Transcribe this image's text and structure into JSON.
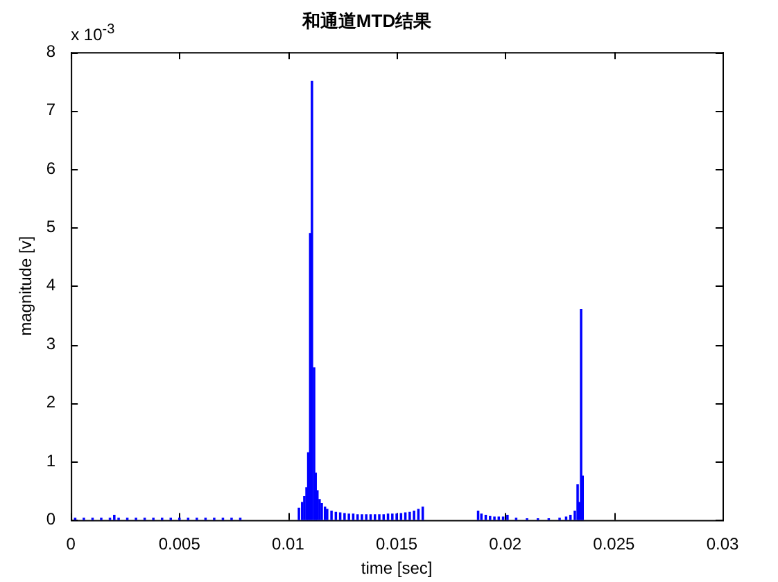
{
  "chart_data": {
    "type": "bar",
    "title": "和通道MTD结果",
    "xlabel": "time [sec]",
    "ylabel": "magnitude [v]",
    "annotations": [
      "x 10$^{-3}$"
    ],
    "x": [
      0.0002,
      0.0006,
      0.001,
      0.0014,
      0.0018,
      0.002,
      0.0022,
      0.0026,
      0.003,
      0.0034,
      0.0038,
      0.0042,
      0.0046,
      0.005,
      0.0054,
      0.0058,
      0.0062,
      0.0066,
      0.007,
      0.0074,
      0.0078,
      0.0105,
      0.01065,
      0.01075,
      0.01085,
      0.01093,
      0.01102,
      0.0111,
      0.0112,
      0.01127,
      0.01135,
      0.01145,
      0.01155,
      0.0117,
      0.0118,
      0.012,
      0.0122,
      0.0124,
      0.0126,
      0.0128,
      0.013,
      0.0132,
      0.0134,
      0.0136,
      0.0138,
      0.014,
      0.0142,
      0.0144,
      0.0146,
      0.0148,
      0.015,
      0.0152,
      0.0154,
      0.0156,
      0.0158,
      0.016,
      0.0162,
      0.01875,
      0.0189,
      0.0191,
      0.0193,
      0.0195,
      0.0197,
      0.0199,
      0.0201,
      0.0205,
      0.021,
      0.0215,
      0.022,
      0.0225,
      0.0228,
      0.023,
      0.0232,
      0.02333,
      0.0234,
      0.02349,
      0.02356
    ],
    "values": [
      0.03,
      0.03,
      0.03,
      0.03,
      0.03,
      0.08,
      0.03,
      0.03,
      0.03,
      0.03,
      0.03,
      0.03,
      0.03,
      0.03,
      0.03,
      0.03,
      0.03,
      0.03,
      0.03,
      0.03,
      0.03,
      0.2,
      0.3,
      0.4,
      0.55,
      1.15,
      4.9,
      7.5,
      2.6,
      0.8,
      0.5,
      0.35,
      0.28,
      0.22,
      0.18,
      0.15,
      0.13,
      0.12,
      0.11,
      0.1,
      0.1,
      0.09,
      0.09,
      0.09,
      0.09,
      0.09,
      0.09,
      0.09,
      0.1,
      0.1,
      0.1,
      0.11,
      0.12,
      0.13,
      0.15,
      0.18,
      0.22,
      0.15,
      0.1,
      0.08,
      0.06,
      0.05,
      0.05,
      0.05,
      0.08,
      0.03,
      0.02,
      0.02,
      0.02,
      0.03,
      0.05,
      0.08,
      0.15,
      0.6,
      0.3,
      3.6,
      0.75
    ],
    "color": "#0000ff",
    "xlim": [
      0,
      0.03
    ],
    "xticks": [
      0,
      0.005,
      0.01,
      0.015,
      0.02,
      0.025,
      0.03
    ],
    "ylim": [
      0,
      8
    ],
    "yticks": [
      0,
      1,
      2,
      3,
      4,
      5,
      6,
      7,
      8
    ]
  }
}
